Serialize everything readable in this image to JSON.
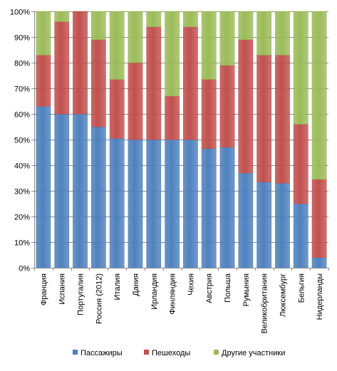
{
  "chart_data": {
    "type": "bar",
    "stacked": true,
    "percent": true,
    "title": "",
    "xlabel": "",
    "ylabel": "",
    "ylim": [
      0,
      100
    ],
    "yticks": [
      "0%",
      "10%",
      "20%",
      "30%",
      "40%",
      "50%",
      "60%",
      "70%",
      "80%",
      "90%",
      "100%"
    ],
    "grid": true,
    "legend_position": "bottom",
    "categories": [
      "Франция",
      "Испания",
      "Португалия",
      "Россия (2012)",
      "Италия",
      "Дания",
      "Ирландия",
      "Финляндия",
      "Чехия",
      "Австрия",
      "Польша",
      "Румыния",
      "Великобритания",
      "Люксембург",
      "Бельгия",
      "Нидерланды"
    ],
    "series": [
      {
        "name": "Пассажиры",
        "color": "#4F81BD",
        "values": [
          63,
          60,
          60,
          55,
          50.5,
          50,
          50,
          50,
          50,
          46.5,
          47,
          37,
          33.5,
          33,
          25,
          4
        ]
      },
      {
        "name": "Пешеходы",
        "color": "#C0504D",
        "values": [
          20,
          36,
          40,
          34,
          23,
          30,
          44,
          17,
          44,
          27,
          32,
          52,
          49.5,
          50,
          31,
          30.5
        ]
      },
      {
        "name": "Другие участники",
        "color": "#9BBB59",
        "values": [
          17,
          4,
          0,
          11,
          26.5,
          20,
          6,
          33,
          6,
          26.5,
          21,
          11,
          17,
          17,
          44,
          65.5
        ]
      }
    ]
  }
}
